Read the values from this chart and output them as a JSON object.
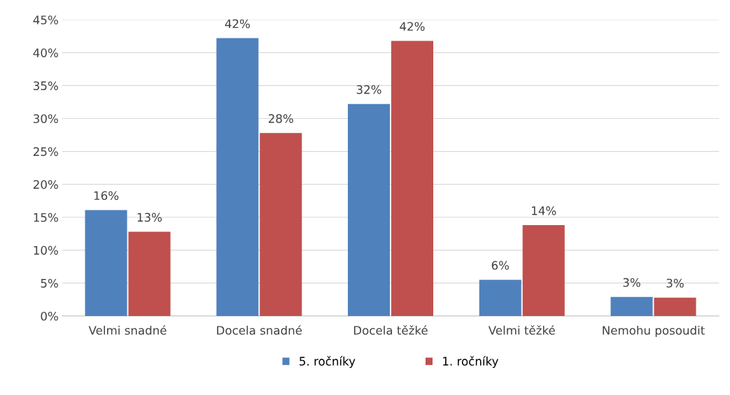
{
  "chart_data": {
    "type": "bar",
    "categories": [
      "Velmi snadné",
      "Docela snadné",
      "Docela těžké",
      "Velmi těžké",
      "Nemohu posoudit"
    ],
    "series": [
      {
        "name": "5. ročníky",
        "color": "#4f81bd",
        "values": [
          16.1,
          42.2,
          32.2,
          5.5,
          2.9
        ],
        "value_labels": [
          "16%",
          "42%",
          "32%",
          "6%",
          "3%"
        ]
      },
      {
        "name": "1. ročníky",
        "color": "#c0504d",
        "values": [
          12.8,
          27.8,
          41.8,
          13.8,
          2.8
        ],
        "value_labels": [
          "13%",
          "28%",
          "42%",
          "14%",
          "3%"
        ]
      }
    ],
    "ylim": [
      0,
      45
    ],
    "yticks": [
      {
        "value": 0,
        "label": "0%"
      },
      {
        "value": 5,
        "label": "5%"
      },
      {
        "value": 10,
        "label": "10%"
      },
      {
        "value": 15,
        "label": "15%"
      },
      {
        "value": 20,
        "label": "20%"
      },
      {
        "value": 25,
        "label": "25%"
      },
      {
        "value": 30,
        "label": "30%"
      },
      {
        "value": 35,
        "label": "35%"
      },
      {
        "value": 40,
        "label": "40%"
      },
      {
        "value": 45,
        "label": "45%"
      }
    ],
    "grid": "y",
    "legend": "bottom"
  }
}
